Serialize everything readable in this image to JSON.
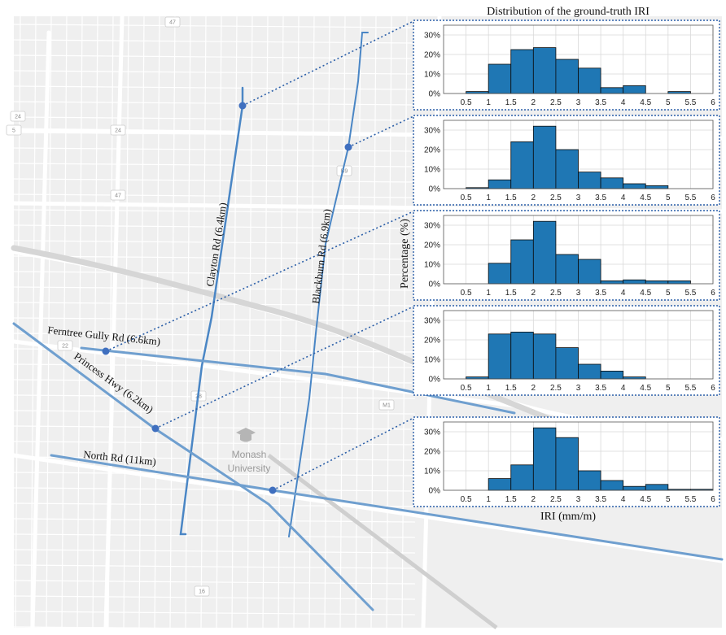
{
  "title": "Distribution of the ground-truth IRI",
  "xlabel": "IRI (mm/m)",
  "ylabel": "Percentage (%)",
  "campus": {
    "line1": "Monash",
    "line2": "University"
  },
  "road_shields": [
    "47",
    "24",
    "24",
    "47",
    "5",
    "22",
    "M1",
    "16",
    "B9",
    "28"
  ],
  "roads": [
    {
      "label": "Clayton Rd (6.4km)"
    },
    {
      "label": "Blackburn Rd (6.9km)"
    },
    {
      "label": "Ferntree Gully Rd (6.6km)"
    },
    {
      "label": "Princess Hwy (6.2km)"
    },
    {
      "label": "North Rd (11km)"
    }
  ],
  "colors": {
    "bar": "#1f77b4",
    "road": "#4a86c5",
    "connector": "#2a5ea8",
    "marker": "#3f6fbf"
  },
  "chart_data": [
    {
      "type": "bar",
      "road": "Clayton Rd (6.4km)",
      "bin_edges": [
        0.5,
        1,
        1.5,
        2,
        2.5,
        3,
        3.5,
        4,
        4.5,
        5,
        5.5
      ],
      "values": [
        1,
        15,
        22.5,
        23.5,
        17.5,
        13,
        3,
        4,
        0,
        1
      ],
      "xticks": [
        "0.5",
        "1",
        "1.5",
        "2",
        "2.5",
        "3",
        "3.5",
        "4",
        "4.5",
        "5",
        "5.5",
        "6"
      ],
      "yticks": [
        "0%",
        "10%",
        "20%",
        "30%"
      ],
      "ylim": [
        0,
        35
      ],
      "xlim": [
        0,
        6
      ],
      "grid": true
    },
    {
      "type": "bar",
      "road": "Blackburn Rd (6.9km)",
      "bin_edges": [
        0.5,
        1,
        1.5,
        2,
        2.5,
        3,
        3.5,
        4,
        4.5,
        5
      ],
      "values": [
        0.5,
        4.5,
        24,
        32,
        20,
        8.5,
        5.5,
        2.5,
        1.5
      ],
      "xticks": [
        "0.5",
        "1",
        "1.5",
        "2",
        "2.5",
        "3",
        "3.5",
        "4",
        "4.5",
        "5",
        "5.5",
        "6"
      ],
      "yticks": [
        "0%",
        "10%",
        "20%",
        "30%"
      ],
      "ylim": [
        0,
        35
      ],
      "xlim": [
        0,
        6
      ],
      "grid": true
    },
    {
      "type": "bar",
      "road": "Ferntree Gully Rd (6.6km)",
      "bin_edges": [
        1,
        1.5,
        2,
        2.5,
        3,
        3.5,
        4,
        4.5,
        5,
        5.5
      ],
      "values": [
        10.5,
        22.5,
        32,
        15,
        12.5,
        1.5,
        2,
        1.5,
        1.5
      ],
      "xticks": [
        "0.5",
        "1",
        "1.5",
        "2",
        "2.5",
        "3",
        "3.5",
        "4",
        "4.5",
        "5",
        "5.5",
        "6"
      ],
      "yticks": [
        "0%",
        "10%",
        "20%",
        "30%"
      ],
      "ylim": [
        0,
        35
      ],
      "xlim": [
        0,
        6
      ],
      "grid": true
    },
    {
      "type": "bar",
      "road": "Princess Hwy (6.2km)",
      "bin_edges": [
        0.5,
        1,
        1.5,
        2,
        2.5,
        3,
        3.5,
        4,
        4.5
      ],
      "values": [
        1,
        23,
        24,
        23,
        16,
        7.5,
        4,
        1
      ],
      "xticks": [
        "0.5",
        "1",
        "1.5",
        "2",
        "2.5",
        "3",
        "3.5",
        "4",
        "4.5",
        "5",
        "5.5",
        "6"
      ],
      "yticks": [
        "0%",
        "10%",
        "20%",
        "30%"
      ],
      "ylim": [
        0,
        35
      ],
      "xlim": [
        0,
        6
      ],
      "grid": true
    },
    {
      "type": "bar",
      "road": "North Rd (11km)",
      "bin_edges": [
        1,
        1.5,
        2,
        2.5,
        3,
        3.5,
        4,
        4.5,
        5,
        5.5,
        6
      ],
      "values": [
        6,
        13,
        32,
        27,
        10,
        5,
        2,
        3,
        0.5,
        0.5
      ],
      "xticks": [
        "0.5",
        "1",
        "1.5",
        "2",
        "2.5",
        "3",
        "3.5",
        "4",
        "4.5",
        "5",
        "5.5",
        "6"
      ],
      "yticks": [
        "0%",
        "10%",
        "20%",
        "30%"
      ],
      "ylim": [
        0,
        35
      ],
      "xlim": [
        0,
        6
      ],
      "grid": true
    }
  ]
}
